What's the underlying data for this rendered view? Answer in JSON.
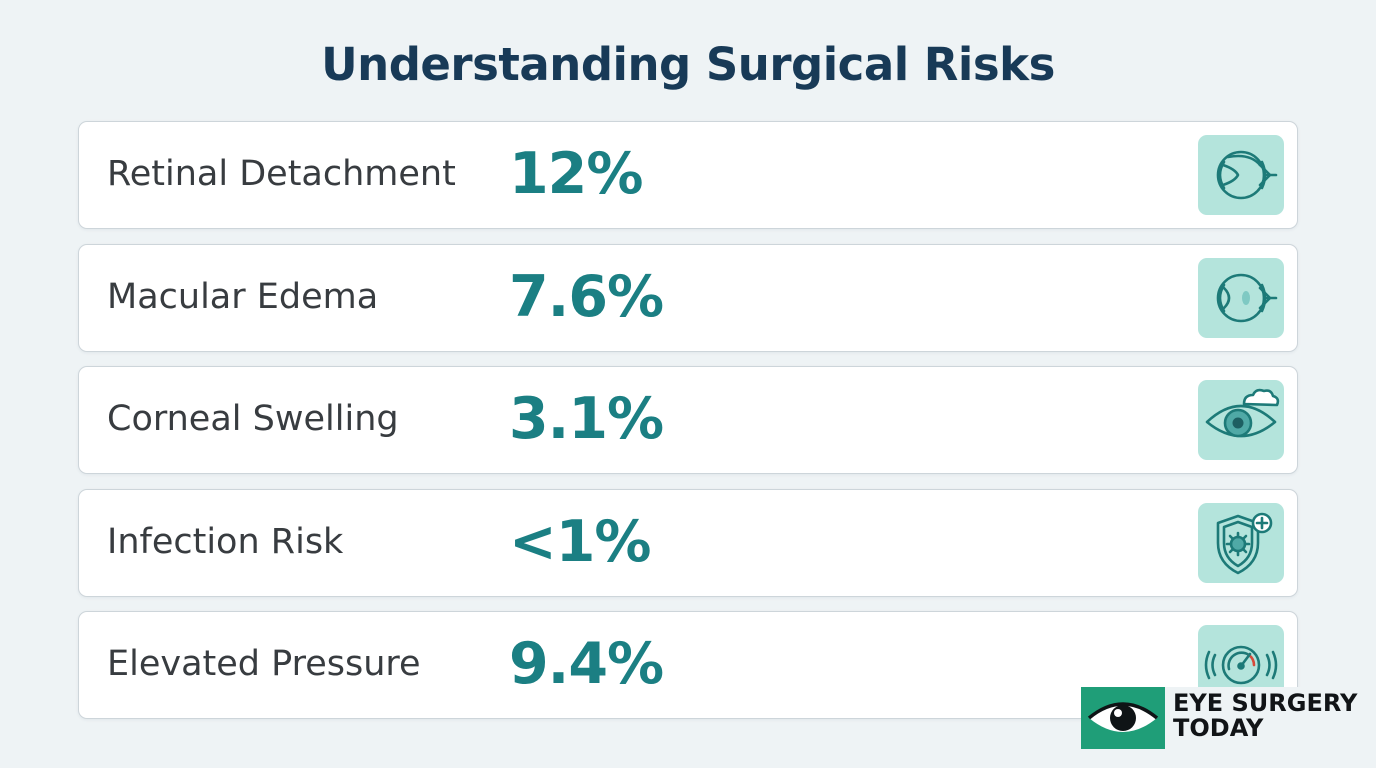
{
  "page": {
    "title": "Understanding Surgical Risks"
  },
  "risks": [
    {
      "label": "Retinal Detachment",
      "value": "12%",
      "icon": "eye-cross-section-icon"
    },
    {
      "label": "Macular Edema",
      "value": "7.6%",
      "icon": "eye-macula-icon"
    },
    {
      "label": "Corneal Swelling",
      "value": "3.1%",
      "icon": "eye-cornea-swelling-icon"
    },
    {
      "label": "Infection Risk",
      "value": "<1%",
      "icon": "shield-germ-icon"
    },
    {
      "label": "Elevated Pressure",
      "value": "9.4%",
      "icon": "pressure-gauge-icon"
    }
  ],
  "brand": {
    "line1": "EYE SURGERY",
    "line2": "TODAY",
    "icon": "eye-logo-icon"
  },
  "colors": {
    "background": "#eef3f5",
    "title": "#183a57",
    "label": "#383c40",
    "value": "#1b7f83",
    "icon_tile": "#b4e4dc",
    "icon_stroke": "#1d7a78",
    "brand_green": "#1f9e78"
  }
}
